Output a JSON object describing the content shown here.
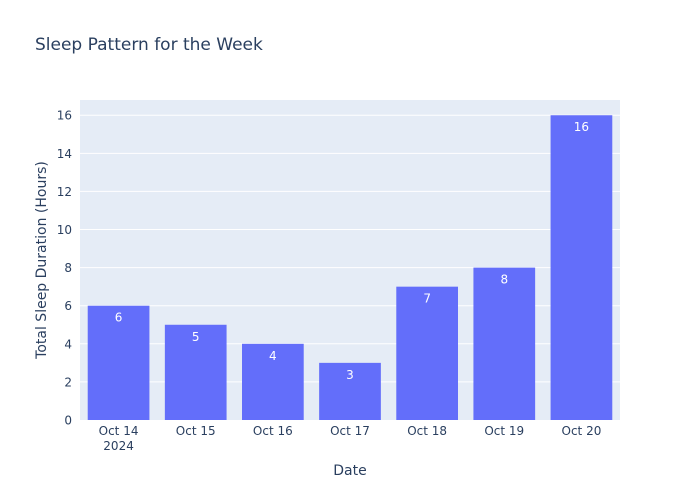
{
  "chart_data": {
    "type": "bar",
    "title": "Sleep Pattern for the Week",
    "xlabel": "Date",
    "ylabel": "Total Sleep Duration (Hours)",
    "categories": [
      "Oct 14",
      "Oct 15",
      "Oct 16",
      "Oct 17",
      "Oct 18",
      "Oct 19",
      "Oct 20"
    ],
    "first_category_sublabel": "2024",
    "values": [
      6,
      5,
      4,
      3,
      7,
      8,
      16
    ],
    "data_labels": [
      "6",
      "5",
      "4",
      "3",
      "7",
      "8",
      "16"
    ],
    "ylim": [
      0,
      16.8
    ],
    "yticks": [
      0,
      2,
      4,
      6,
      8,
      10,
      12,
      14,
      16
    ],
    "grid": true,
    "colors": {
      "bar": "#636efa",
      "plot_bg": "#e5ecf6",
      "grid": "#ffffff",
      "text": "#2a3f5f",
      "tick_text": "#2a3f5f",
      "bar_label": "#ffffff",
      "paper_bg": "#ffffff"
    }
  }
}
